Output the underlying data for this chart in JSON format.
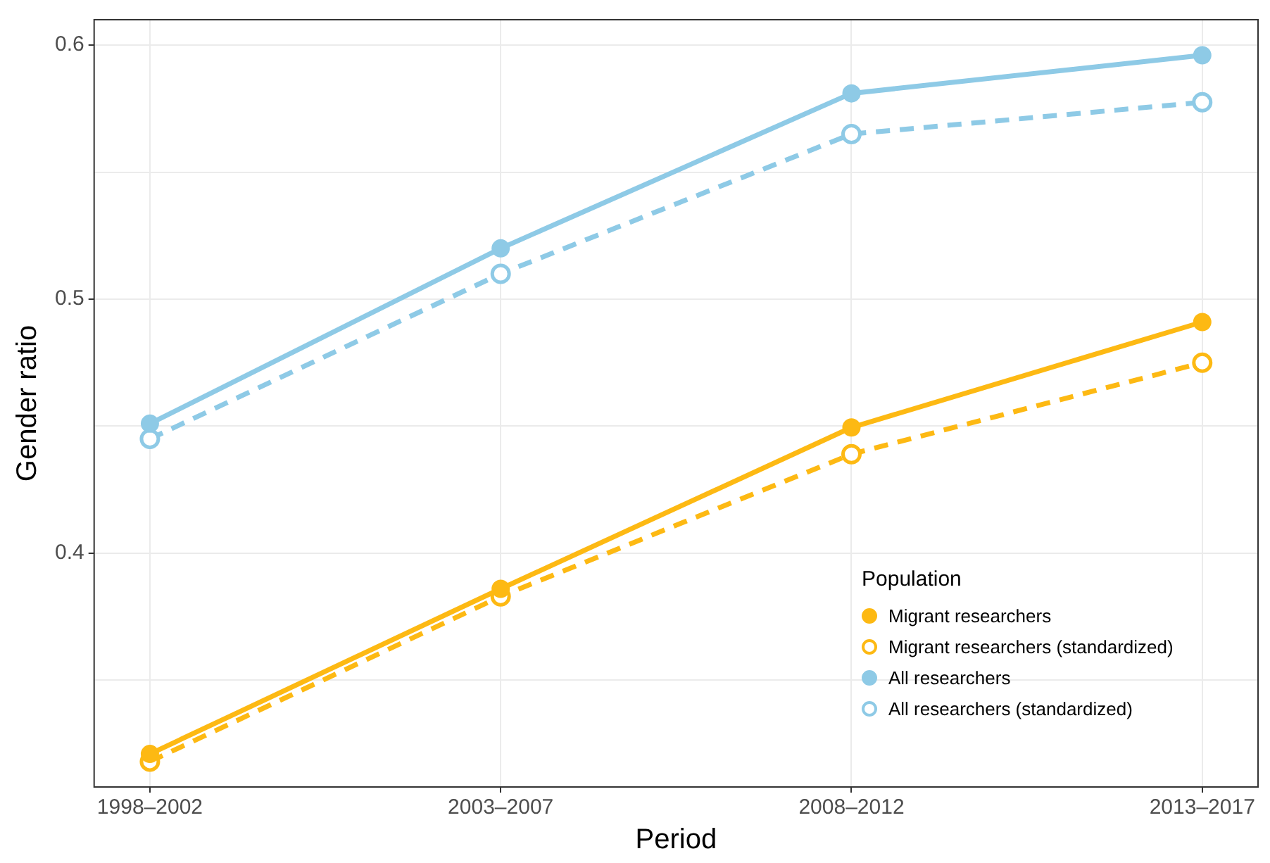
{
  "chart_data": {
    "type": "line",
    "xlabel": "Period",
    "ylabel": "Gender ratio",
    "legend_title": "Population",
    "categories": [
      "1998–2002",
      "2003–2007",
      "2008–2012",
      "2013–2017"
    ],
    "series": [
      {
        "name": "Migrant researchers",
        "color": "#fdb913",
        "values": [
          0.321,
          0.386,
          0.4495,
          0.491
        ],
        "line_style": "solid"
      },
      {
        "name": "Migrant researchers (standardized)",
        "color": "#fdb913",
        "values": [
          0.318,
          0.383,
          0.439,
          0.475
        ],
        "line_style": "dashed"
      },
      {
        "name": "All researchers",
        "color": "#8ecae6",
        "values": [
          0.451,
          0.52,
          0.581,
          0.596
        ],
        "line_style": "solid"
      },
      {
        "name": "All researchers (standardized)",
        "color": "#8ecae6",
        "values": [
          0.445,
          0.51,
          0.565,
          0.5775
        ],
        "line_style": "dashed"
      }
    ],
    "ylim": [
      0.308,
      0.61
    ],
    "yticks": [
      {
        "value": 0.35,
        "label": null
      },
      0.4,
      {
        "value": 0.45,
        "label": null
      },
      0.5,
      {
        "value": 0.55,
        "label": null
      },
      0.6
    ],
    "grid": true,
    "legend": "bottom right",
    "marker": "circle"
  }
}
